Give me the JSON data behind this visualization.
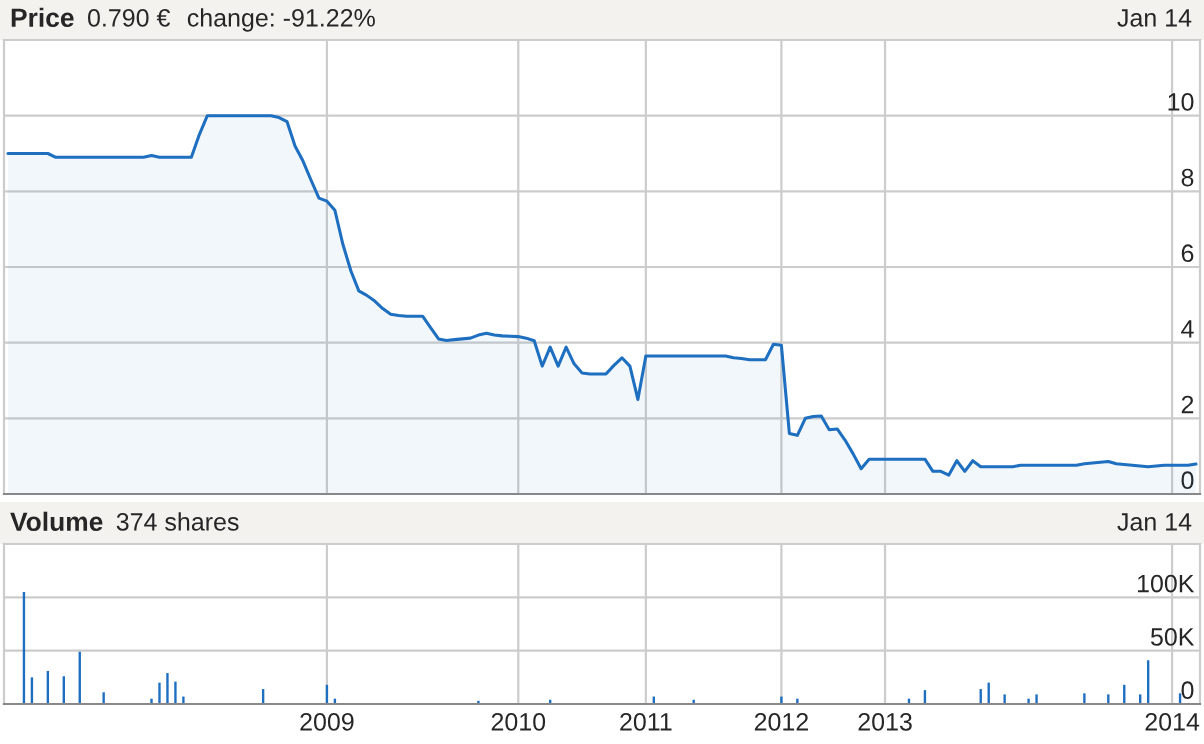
{
  "chart_data": [
    {
      "type": "area",
      "title": "Price",
      "annotations": [
        "0.790 €",
        "change: -91.22%",
        "Jan 14"
      ],
      "categories": [
        null,
        null,
        null,
        null,
        null,
        null,
        null,
        null,
        null,
        null,
        null,
        null,
        null,
        null,
        null,
        null,
        null,
        null,
        null,
        null,
        null,
        null,
        null,
        null,
        null,
        null,
        null,
        null,
        null,
        null,
        null,
        null,
        null,
        null,
        null,
        null,
        null,
        null,
        null,
        null,
        "2009",
        null,
        null,
        null,
        null,
        null,
        null,
        null,
        null,
        null,
        null,
        null,
        null,
        null,
        null,
        null,
        null,
        null,
        null,
        null,
        null,
        null,
        null,
        null,
        "2010",
        null,
        null,
        null,
        null,
        null,
        null,
        null,
        null,
        null,
        null,
        null,
        null,
        null,
        null,
        null,
        "2011",
        null,
        null,
        null,
        null,
        null,
        null,
        null,
        null,
        null,
        null,
        null,
        null,
        null,
        null,
        null,
        null,
        "2012",
        null,
        null,
        null,
        null,
        null,
        null,
        null,
        null,
        null,
        null,
        null,
        null,
        "2013",
        null,
        null,
        null,
        null,
        null,
        null,
        null,
        null,
        null,
        null,
        null,
        null,
        null,
        null,
        null,
        null,
        null,
        null,
        null,
        null,
        null,
        null,
        null,
        null,
        null,
        null,
        null,
        null,
        null,
        null,
        null,
        null,
        null,
        null,
        null,
        "2014",
        null,
        null,
        null
      ],
      "ylim": [
        0,
        12
      ],
      "yticks": [
        0,
        2,
        4,
        6,
        8,
        10
      ],
      "tick_labels": "y",
      "grid": true,
      "legend": false,
      "series": [
        {
          "color": "#1f6fc1",
          "values": [
            9.0,
            9.0,
            9.0,
            9.0,
            9.0,
            9.0,
            8.9,
            8.9,
            8.9,
            8.9,
            8.9,
            8.9,
            8.9,
            8.9,
            8.9,
            8.9,
            8.9,
            8.9,
            8.95,
            8.9,
            8.9,
            8.9,
            8.9,
            8.9,
            9.5,
            10.0,
            10.0,
            10.0,
            10.0,
            10.0,
            10.0,
            10.0,
            10.0,
            10.0,
            9.95,
            9.84,
            9.2,
            8.8,
            8.3,
            7.82,
            7.74,
            7.5,
            6.6,
            5.9,
            5.37,
            5.25,
            5.1,
            4.9,
            4.75,
            4.72,
            4.7,
            4.7,
            4.7,
            4.4,
            4.1,
            4.06,
            4.08,
            4.1,
            4.12,
            4.2,
            4.25,
            4.2,
            4.18,
            4.17,
            4.16,
            4.12,
            4.05,
            3.38,
            3.88,
            3.38,
            3.88,
            3.44,
            3.2,
            3.17,
            3.17,
            3.17,
            3.4,
            3.6,
            3.38,
            2.5,
            3.65,
            3.65,
            3.65,
            3.65,
            3.65,
            3.65,
            3.65,
            3.65,
            3.65,
            3.65,
            3.65,
            3.6,
            3.58,
            3.55,
            3.55,
            3.55,
            3.96,
            3.93,
            1.6,
            1.55,
            2.0,
            2.05,
            2.06,
            1.7,
            1.72,
            1.42,
            1.06,
            0.67,
            0.92,
            0.92,
            0.92,
            0.92,
            0.92,
            0.92,
            0.92,
            0.92,
            0.6,
            0.6,
            0.5,
            0.88,
            0.6,
            0.88,
            0.72,
            0.72,
            0.72,
            0.72,
            0.72,
            0.76,
            0.76,
            0.76,
            0.76,
            0.76,
            0.76,
            0.76,
            0.76,
            0.8,
            0.82,
            0.84,
            0.86,
            0.8,
            0.78,
            0.76,
            0.74,
            0.72,
            0.74,
            0.76,
            0.76,
            0.76,
            0.76,
            0.79
          ]
        }
      ]
    },
    {
      "type": "bar",
      "title": "Volume",
      "annotations": [
        "374 shares",
        "Jan 14"
      ],
      "categories": [
        null,
        null,
        null,
        null,
        null,
        null,
        null,
        null,
        null,
        null,
        null,
        null,
        null,
        null,
        null,
        null,
        null,
        null,
        null,
        null,
        null,
        null,
        null,
        null,
        null,
        null,
        null,
        null,
        null,
        null,
        null,
        null,
        null,
        null,
        null,
        null,
        null,
        null,
        null,
        null,
        "2009",
        null,
        null,
        null,
        null,
        null,
        null,
        null,
        null,
        null,
        null,
        null,
        null,
        null,
        null,
        null,
        null,
        null,
        null,
        null,
        null,
        null,
        null,
        null,
        "2010",
        null,
        null,
        null,
        null,
        null,
        null,
        null,
        null,
        null,
        null,
        null,
        null,
        null,
        null,
        null,
        "2011",
        null,
        null,
        null,
        null,
        null,
        null,
        null,
        null,
        null,
        null,
        null,
        null,
        null,
        null,
        null,
        null,
        "2012",
        null,
        null,
        null,
        null,
        null,
        null,
        null,
        null,
        null,
        null,
        null,
        null,
        "2013",
        null,
        null,
        null,
        null,
        null,
        null,
        null,
        null,
        null,
        null,
        null,
        null,
        null,
        null,
        null,
        null,
        null,
        null,
        null,
        null,
        null,
        null,
        null,
        null,
        null,
        null,
        null,
        null,
        null,
        null,
        null,
        null,
        null,
        null,
        null,
        "2014",
        null,
        null,
        null
      ],
      "ylim": [
        0,
        150000
      ],
      "yticks": [
        0,
        {
          "value": 50000,
          "label": "50K"
        },
        {
          "value": 100000,
          "label": "100K"
        }
      ],
      "grid": true,
      "legend": false,
      "series": [
        {
          "color": "#1f6fc1",
          "values": [
            0,
            0,
            105000,
            25000,
            0,
            31000,
            0,
            26000,
            0,
            49000,
            0,
            0,
            11000,
            0,
            0,
            0,
            0,
            0,
            5000,
            20000,
            29000,
            21000,
            7000,
            0,
            0,
            0,
            0,
            0,
            0,
            0,
            0,
            0,
            14000,
            0,
            0,
            0,
            0,
            0,
            0,
            0,
            18000,
            5000,
            0,
            0,
            0,
            0,
            0,
            0,
            0,
            0,
            0,
            0,
            0,
            0,
            0,
            0,
            0,
            0,
            0,
            3000,
            0,
            0,
            0,
            0,
            0,
            0,
            0,
            0,
            4000,
            0,
            0,
            0,
            0,
            0,
            0,
            0,
            0,
            0,
            0,
            0,
            0,
            7000,
            0,
            0,
            0,
            0,
            4000,
            0,
            0,
            0,
            0,
            0,
            0,
            0,
            0,
            0,
            0,
            7000,
            0,
            5000,
            0,
            0,
            0,
            0,
            0,
            0,
            0,
            0,
            0,
            0,
            0,
            0,
            0,
            5000,
            0,
            13000,
            0,
            0,
            0,
            0,
            0,
            0,
            14000,
            20000,
            0,
            9000,
            0,
            0,
            5000,
            9000,
            0,
            0,
            0,
            0,
            0,
            10000,
            0,
            0,
            9000,
            0,
            18000,
            0,
            9000,
            41000,
            0,
            0,
            0,
            10000,
            0,
            0
          ]
        }
      ]
    }
  ]
}
